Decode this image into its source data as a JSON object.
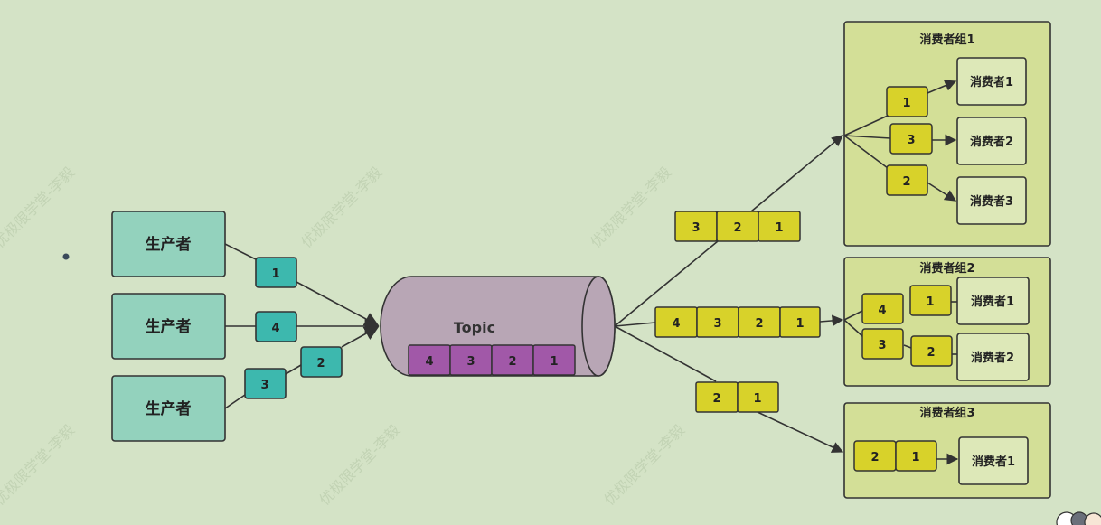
{
  "colors": {
    "background": "#d4e3c6",
    "producer_fill": "#93d2bd",
    "producer_msg_fill": "#3db8ae",
    "topic_fill": "#b8a6b5",
    "topic_msg_fill": "#a158a8",
    "consumer_msg_fill": "#d8d22a",
    "group_fill": "#d3df97",
    "consumer_fill": "#dde8b8",
    "stroke": "#333333",
    "watermark": "#c6d6b8"
  },
  "producers": [
    {
      "label": "生产者"
    },
    {
      "label": "生产者"
    },
    {
      "label": "生产者"
    }
  ],
  "producer_messages": [
    "1",
    "4",
    "2",
    "3"
  ],
  "topic": {
    "label": "Topic",
    "messages": [
      "4",
      "3",
      "2",
      "1"
    ]
  },
  "flows": {
    "to_group1": [
      "3",
      "2",
      "1"
    ],
    "to_group2": [
      "4",
      "3",
      "2",
      "1"
    ],
    "to_group3": [
      "2",
      "1"
    ]
  },
  "groups": [
    {
      "title": "消费者组1",
      "consumers": [
        "消费者1",
        "消费者2",
        "消费者3"
      ],
      "messages": [
        "1",
        "3",
        "2"
      ]
    },
    {
      "title": "消费者组2",
      "consumers": [
        "消费者1",
        "消费者2"
      ],
      "messages": [
        "4",
        "1",
        "3",
        "2"
      ]
    },
    {
      "title": "消费者组3",
      "consumers": [
        "消费者1"
      ],
      "messages": [
        "2",
        "1"
      ]
    }
  ],
  "watermark_text": "优极限学堂-李毅"
}
